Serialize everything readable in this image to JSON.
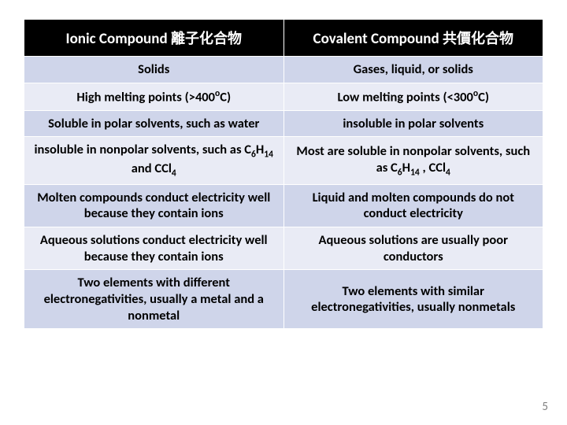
{
  "table": {
    "background_colors": {
      "header": "#000000",
      "light_row": "#cfd5ea",
      "dark_row": "#e9ebf5",
      "border": "#ffffff"
    },
    "text_colors": {
      "header": "#ffffff",
      "body": "#000000",
      "pagenum": "#7f7f7f"
    },
    "font": {
      "family": "Calibri",
      "header_size_pt": 19,
      "body_size_pt": 16.5,
      "weight": "bold"
    },
    "header": {
      "left_main": "Ionic Compound",
      "left_cjk": "離子化合物",
      "right_main": "Covalent Compound",
      "right_cjk": "共價化合物"
    },
    "rows": [
      {
        "left": "Solids",
        "right": "Gases, liquid, or solids"
      },
      {
        "left_html": "High melting points (>400<sup>o</sup>C)",
        "right_html": "Low melting points (<300<sup>o</sup>C)"
      },
      {
        "left": "Soluble in polar solvents, such as water",
        "right": "insoluble in polar solvents"
      },
      {
        "left_html": "insoluble in nonpolar solvents, such as C<sub>6</sub>H<sub>14</sub> and  CCl<sub>4</sub>",
        "right_html": "Most  are soluble in nonpolar solvents,  such as C<sub>6</sub>H<sub>14</sub> , CCl<sub>4</sub>"
      },
      {
        "left": "Molten compounds conduct electricity well because they contain ions",
        "right": "Liquid and molten compounds do not conduct electricity"
      },
      {
        "left": "Aqueous solutions conduct electricity well because they contain ions",
        "right": "Aqueous solutions are usually poor conductors"
      },
      {
        "left": "Two elements with different electronegativities, usually a metal and a nonmetal",
        "right": "Two elements with similar electronegativities, usually nonmetals"
      }
    ]
  },
  "page_number": "5"
}
